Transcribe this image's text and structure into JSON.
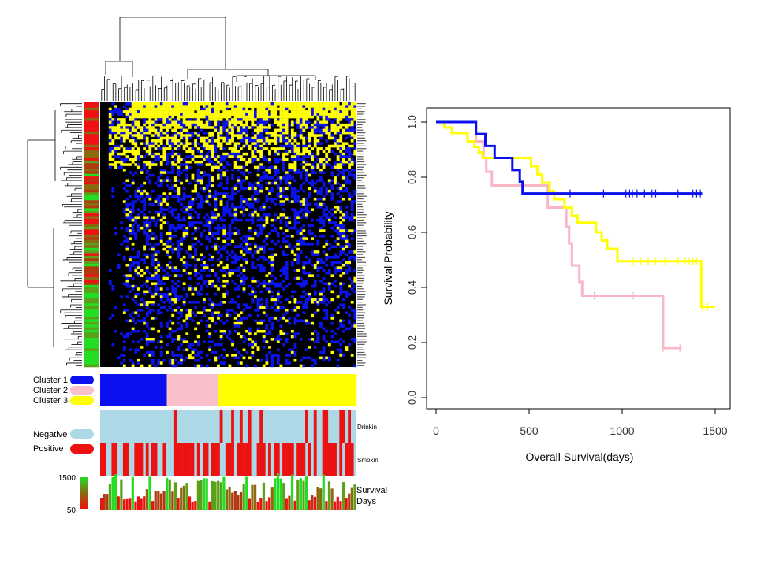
{
  "chart_data": [
    {
      "type": "heatmap",
      "rows": 100,
      "columns": 90,
      "colors": {
        "low": "#000000",
        "mid": "#0a12ee",
        "high": "#ffff00"
      },
      "row_labels": "dense (unreadable)",
      "legend": {
        "clusters": [
          {
            "label": "Cluster 1",
            "color": "#0a10ee"
          },
          {
            "label": "Cluster 2",
            "color": "#f9c0cc"
          },
          {
            "label": "Cluster 3",
            "color": "#ffff00"
          }
        ],
        "status": [
          {
            "label": "Negative",
            "color": "#add8e6"
          },
          {
            "label": "Positive",
            "color": "#ee1111"
          }
        ],
        "survival_scale": {
          "max_label": "1500",
          "min_label": "50"
        }
      },
      "annotation_tracks": [
        {
          "label": "Drinking",
          "display": "Drinkin"
        },
        {
          "label": "Smoking",
          "display": "Smokin"
        },
        {
          "label": "Survival Days",
          "line1": "Survival",
          "line2": "Days"
        }
      ],
      "cluster_bar": [
        {
          "cluster": "Cluster 1",
          "fraction": 0.26
        },
        {
          "cluster": "Cluster 2",
          "fraction": 0.2
        },
        {
          "cluster": "Cluster 3",
          "fraction": 0.54
        }
      ],
      "drinking_positive_columns": [
        26,
        42,
        46,
        49,
        52,
        56,
        72,
        75,
        78,
        79,
        84,
        85,
        87
      ],
      "smoking_positive_columns": [
        0,
        1,
        4,
        5,
        8,
        9,
        12,
        13,
        14,
        16,
        18,
        19,
        22,
        26,
        27,
        28,
        29,
        30,
        31,
        32,
        34,
        36,
        37,
        39,
        40,
        41,
        44,
        45,
        46,
        48,
        49,
        50,
        51,
        52,
        55,
        56,
        57,
        59,
        61,
        62,
        64,
        65,
        66,
        67,
        69,
        70,
        71,
        73,
        75,
        78,
        79,
        80,
        81,
        82,
        84,
        86,
        87,
        88
      ]
    },
    {
      "type": "line",
      "xlabel": "Overall Survival(days)",
      "ylabel": "Survival Probability",
      "xlim": [
        0,
        1500
      ],
      "ylim": [
        0,
        1
      ],
      "xticks": [
        "0",
        "500",
        "1000",
        "1500"
      ],
      "yticks": [
        "0.0",
        "0.2",
        "0.4",
        "0.6",
        "0.8",
        "1.0"
      ],
      "grid": false,
      "series": [
        {
          "color": "#0a10ee",
          "steps": [
            [
              0,
              1.0
            ],
            [
              215,
              1.0
            ],
            [
              215,
              0.957
            ],
            [
              265,
              0.957
            ],
            [
              265,
              0.913
            ],
            [
              315,
              0.913
            ],
            [
              315,
              0.87
            ],
            [
              410,
              0.87
            ],
            [
              410,
              0.826
            ],
            [
              450,
              0.826
            ],
            [
              450,
              0.783
            ],
            [
              465,
              0.783
            ],
            [
              465,
              0.741
            ],
            [
              1430,
              0.741
            ]
          ],
          "censor_x": [
            720,
            900,
            1020,
            1040,
            1055,
            1080,
            1120,
            1160,
            1180,
            1300,
            1380,
            1400,
            1420
          ]
        },
        {
          "color": "#f9b6c4",
          "steps": [
            [
              0,
              1.0
            ],
            [
              215,
              1.0
            ],
            [
              215,
              0.93
            ],
            [
              255,
              0.93
            ],
            [
              255,
              0.87
            ],
            [
              270,
              0.87
            ],
            [
              270,
              0.82
            ],
            [
              300,
              0.82
            ],
            [
              300,
              0.77
            ],
            [
              600,
              0.77
            ],
            [
              600,
              0.69
            ],
            [
              700,
              0.69
            ],
            [
              700,
              0.62
            ],
            [
              715,
              0.62
            ],
            [
              715,
              0.56
            ],
            [
              730,
              0.56
            ],
            [
              730,
              0.48
            ],
            [
              770,
              0.48
            ],
            [
              770,
              0.42
            ],
            [
              785,
              0.42
            ],
            [
              785,
              0.37
            ],
            [
              1220,
              0.37
            ],
            [
              1220,
              0.18
            ],
            [
              1320,
              0.18
            ]
          ],
          "censor_x": [
            850,
            1060,
            1220,
            1310
          ]
        },
        {
          "color": "#ffff00",
          "steps": [
            [
              0,
              1.0
            ],
            [
              45,
              1.0
            ],
            [
              45,
              0.98
            ],
            [
              85,
              0.98
            ],
            [
              85,
              0.96
            ],
            [
              170,
              0.96
            ],
            [
              170,
              0.93
            ],
            [
              205,
              0.93
            ],
            [
              205,
              0.91
            ],
            [
              230,
              0.91
            ],
            [
              230,
              0.89
            ],
            [
              250,
              0.89
            ],
            [
              250,
              0.87
            ],
            [
              510,
              0.87
            ],
            [
              510,
              0.84
            ],
            [
              545,
              0.84
            ],
            [
              545,
              0.81
            ],
            [
              570,
              0.81
            ],
            [
              570,
              0.78
            ],
            [
              610,
              0.78
            ],
            [
              610,
              0.75
            ],
            [
              635,
              0.75
            ],
            [
              635,
              0.72
            ],
            [
              690,
              0.72
            ],
            [
              690,
              0.69
            ],
            [
              730,
              0.69
            ],
            [
              730,
              0.66
            ],
            [
              760,
              0.66
            ],
            [
              760,
              0.635
            ],
            [
              860,
              0.635
            ],
            [
              860,
              0.6
            ],
            [
              890,
              0.6
            ],
            [
              890,
              0.57
            ],
            [
              920,
              0.57
            ],
            [
              920,
              0.54
            ],
            [
              975,
              0.54
            ],
            [
              975,
              0.495
            ],
            [
              1425,
              0.495
            ],
            [
              1425,
              0.33
            ],
            [
              1500,
              0.33
            ]
          ],
          "censor_x": [
            1060,
            1100,
            1140,
            1180,
            1230,
            1300,
            1340,
            1360,
            1380,
            1400,
            1430,
            1460
          ]
        }
      ]
    }
  ]
}
